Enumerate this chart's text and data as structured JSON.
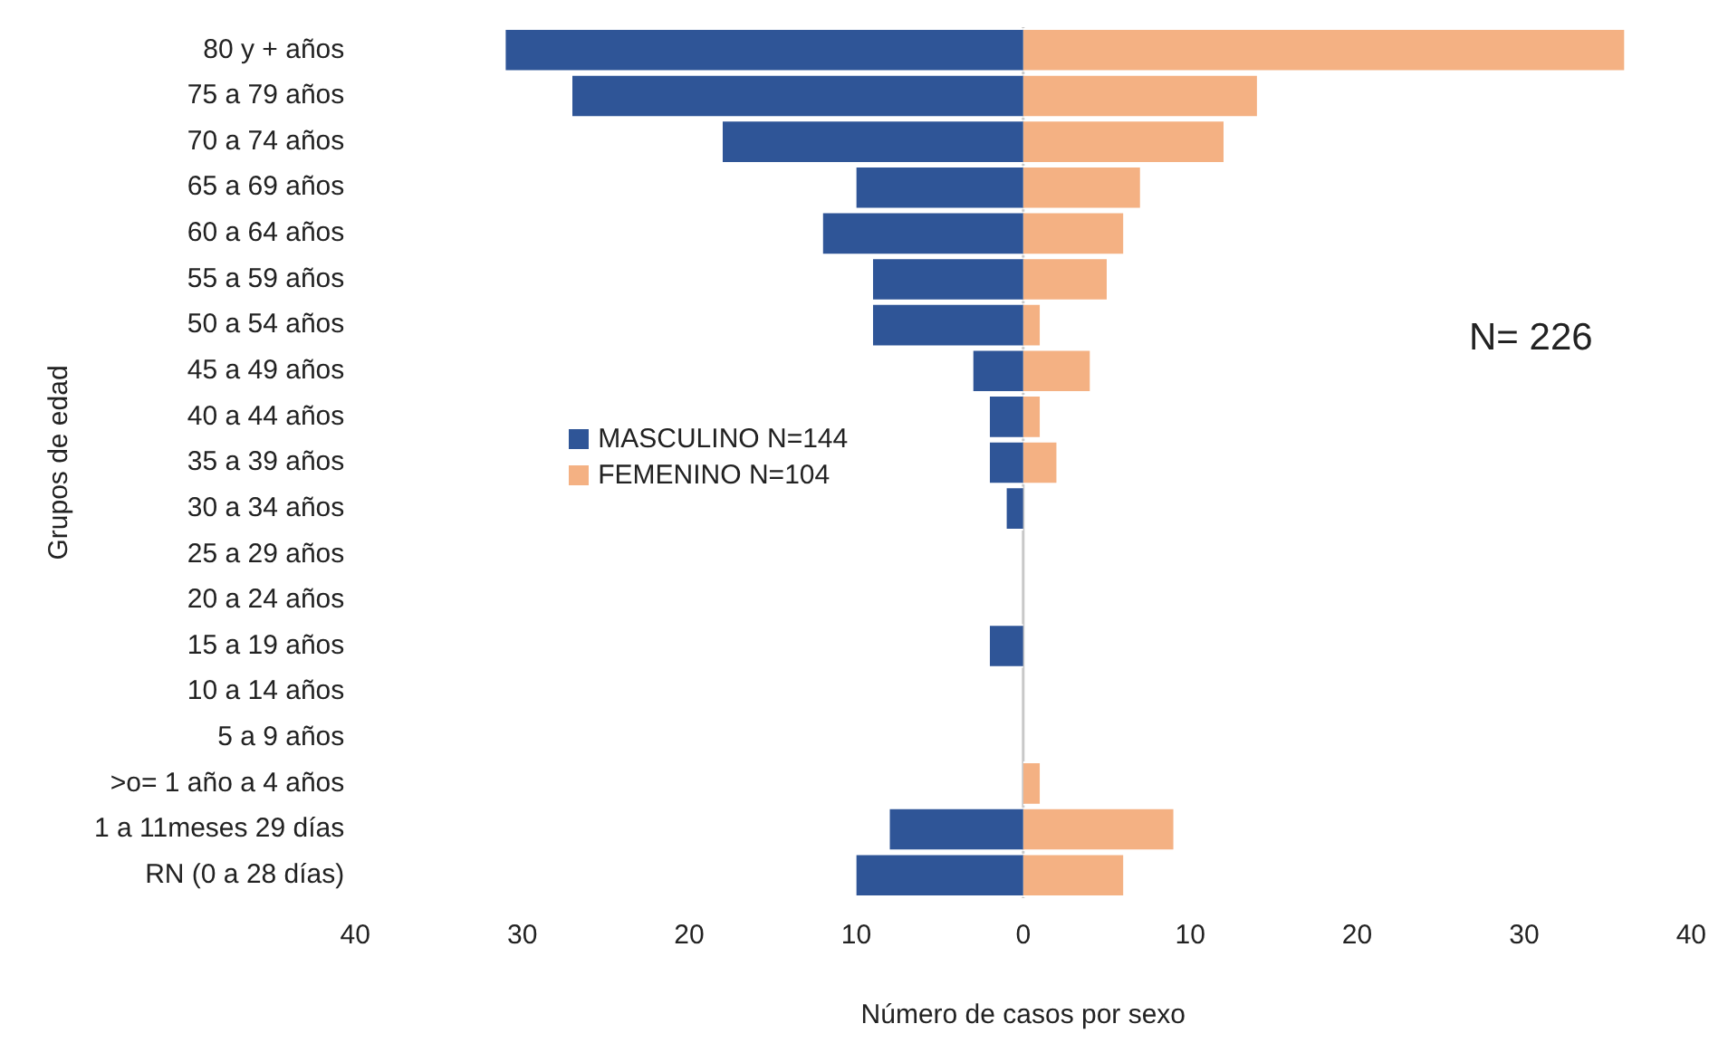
{
  "chart_data": {
    "type": "bar",
    "orientation": "horizontal",
    "stacked": true,
    "categories": [
      "80 y + años",
      "75 a 79 años",
      "70 a 74 años",
      "65 a 69 años",
      "60 a 64 años",
      "55 a 59 años",
      "50 a 54 años",
      "45 a 49 años",
      "40 a 44 años",
      "35 a 39 años",
      "30 a 34 años",
      "25 a 29 años",
      "20 a 24 años",
      "15 a 19 años",
      "10 a 14 años",
      "5 a 9 años",
      ">o= 1 año a 4 años",
      "1 a 11meses 29 días",
      "RN (0 a 28 días)"
    ],
    "series": [
      {
        "name": "MASCULINO N=144",
        "color": "#2f5597",
        "values": [
          -31,
          -27,
          -18,
          -10,
          -12,
          -9,
          -9,
          -3,
          -2,
          -2,
          -1,
          0,
          0,
          -2,
          0,
          0,
          0,
          -8,
          -10
        ]
      },
      {
        "name": "FEMENINO N=104",
        "color": "#f4b183",
        "values": [
          36,
          14,
          12,
          7,
          6,
          5,
          1,
          4,
          1,
          2,
          0,
          0,
          0,
          0,
          0,
          0,
          1,
          9,
          6
        ]
      }
    ],
    "xlim": [
      -40,
      40
    ],
    "xticks": [
      {
        "value": -40,
        "label": "40"
      },
      {
        "value": -30,
        "label": "30"
      },
      {
        "value": -20,
        "label": "20"
      },
      {
        "value": -10,
        "label": "10"
      },
      0,
      10,
      20,
      30,
      40
    ],
    "xlabel": "Número de casos por sexo",
    "ylabel": "Grupos de edad",
    "annotations": [
      "N= 226"
    ],
    "ref_lines": [
      {
        "axis": "x",
        "value": 0,
        "color": "#c8c8c8"
      }
    ],
    "legend": "left",
    "grid": false
  }
}
